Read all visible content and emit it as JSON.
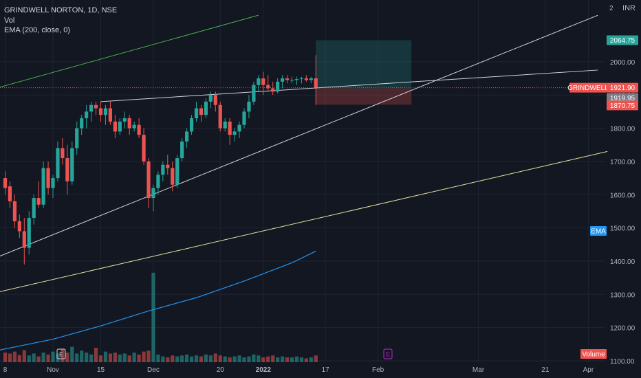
{
  "legend": {
    "symbol": "GRINDWELL NORTON, 1D, NSE",
    "vol": "Vol",
    "ema": "EMA (200, close, 0)"
  },
  "corner": {
    "currency": "INR"
  },
  "chart_data": {
    "type": "candlestick",
    "ylim": [
      1040,
      2140
    ],
    "y_ticks": [
      1100,
      1200,
      1300,
      1400,
      1500,
      1600,
      1700,
      1800,
      1900,
      2000
    ],
    "y_tick_labels": [
      "1100.00",
      "1200.00",
      "1300.00",
      "1400.00",
      "1500.00",
      "1600.00",
      "1700.00",
      "1800.00",
      "1900.00",
      "2000.00"
    ],
    "x_ticks": [
      {
        "label": "8",
        "bar": 0
      },
      {
        "label": "Nov",
        "bar": 10
      },
      {
        "label": "15",
        "bar": 20
      },
      {
        "label": "Dec",
        "bar": 31
      },
      {
        "label": "20",
        "bar": 45
      },
      {
        "label": "2022",
        "bar": 54
      },
      {
        "label": "17",
        "bar": 67
      },
      {
        "label": "Feb",
        "bar": 78
      },
      {
        "label": "Mar",
        "bar": 99
      },
      {
        "label": "21",
        "bar": 113
      },
      {
        "label": "Apr",
        "bar": 122
      }
    ],
    "candles": [
      [
        1650,
        1670,
        1600,
        1620
      ],
      [
        1625,
        1640,
        1560,
        1580
      ],
      [
        1580,
        1600,
        1500,
        1520
      ],
      [
        1520,
        1540,
        1470,
        1490
      ],
      [
        1490,
        1530,
        1390,
        1440
      ],
      [
        1440,
        1550,
        1420,
        1530
      ],
      [
        1530,
        1600,
        1510,
        1590
      ],
      [
        1590,
        1640,
        1560,
        1570
      ],
      [
        1570,
        1700,
        1560,
        1680
      ],
      [
        1680,
        1700,
        1600,
        1620
      ],
      [
        1620,
        1660,
        1590,
        1650
      ],
      [
        1650,
        1760,
        1640,
        1740
      ],
      [
        1740,
        1770,
        1690,
        1710
      ],
      [
        1710,
        1750,
        1600,
        1640
      ],
      [
        1640,
        1760,
        1630,
        1740
      ],
      [
        1740,
        1820,
        1720,
        1800
      ],
      [
        1800,
        1840,
        1780,
        1830
      ],
      [
        1830,
        1870,
        1800,
        1850
      ],
      [
        1850,
        1880,
        1820,
        1870
      ],
      [
        1870,
        1880,
        1840,
        1860
      ],
      [
        1860,
        1880,
        1820,
        1840
      ],
      [
        1840,
        1870,
        1810,
        1860
      ],
      [
        1860,
        1880,
        1810,
        1820
      ],
      [
        1820,
        1840,
        1770,
        1790
      ],
      [
        1790,
        1830,
        1780,
        1820
      ],
      [
        1820,
        1850,
        1800,
        1830
      ],
      [
        1830,
        1840,
        1780,
        1800
      ],
      [
        1800,
        1820,
        1790,
        1810
      ],
      [
        1810,
        1830,
        1770,
        1780
      ],
      [
        1780,
        1800,
        1690,
        1700
      ],
      [
        1700,
        1710,
        1560,
        1590
      ],
      [
        1590,
        1630,
        1550,
        1620
      ],
      [
        1620,
        1670,
        1600,
        1660
      ],
      [
        1660,
        1700,
        1640,
        1690
      ],
      [
        1690,
        1720,
        1660,
        1680
      ],
      [
        1680,
        1700,
        1610,
        1630
      ],
      [
        1630,
        1720,
        1620,
        1710
      ],
      [
        1710,
        1770,
        1700,
        1760
      ],
      [
        1760,
        1800,
        1740,
        1790
      ],
      [
        1790,
        1840,
        1780,
        1830
      ],
      [
        1830,
        1880,
        1820,
        1860
      ],
      [
        1860,
        1870,
        1820,
        1840
      ],
      [
        1840,
        1890,
        1830,
        1880
      ],
      [
        1880,
        1910,
        1860,
        1900
      ],
      [
        1900,
        1910,
        1850,
        1870
      ],
      [
        1870,
        1880,
        1790,
        1800
      ],
      [
        1800,
        1830,
        1790,
        1820
      ],
      [
        1820,
        1830,
        1750,
        1780
      ],
      [
        1780,
        1800,
        1760,
        1790
      ],
      [
        1790,
        1820,
        1770,
        1810
      ],
      [
        1810,
        1860,
        1800,
        1850
      ],
      [
        1850,
        1900,
        1830,
        1880
      ],
      [
        1880,
        1940,
        1870,
        1930
      ],
      [
        1930,
        1960,
        1910,
        1950
      ],
      [
        1950,
        1970,
        1900,
        1930
      ],
      [
        1930,
        1960,
        1910,
        1920
      ],
      [
        1920,
        1940,
        1900,
        1910
      ],
      [
        1910,
        1950,
        1905,
        1940
      ],
      [
        1940,
        1960,
        1920,
        1950
      ],
      [
        1950,
        1960,
        1935,
        1945
      ],
      [
        1945,
        1955,
        1935,
        1945
      ],
      [
        1945,
        1955,
        1930,
        1948
      ],
      [
        1948,
        1955,
        1935,
        1950
      ],
      [
        1950,
        1960,
        1940,
        1945
      ],
      [
        1945,
        1955,
        1935,
        1950
      ],
      [
        1950,
        2020,
        1870,
        1921.9
      ]
    ],
    "volume": [
      20,
      18,
      22,
      15,
      25,
      14,
      18,
      12,
      20,
      16,
      22,
      18,
      28,
      20,
      32,
      18,
      24,
      20,
      16,
      30,
      14,
      22,
      18,
      20,
      16,
      18,
      14,
      20,
      16,
      22,
      24,
      186,
      16,
      12,
      10,
      14,
      12,
      14,
      16,
      12,
      14,
      12,
      16,
      14,
      18,
      14,
      12,
      10,
      12,
      14,
      10,
      12,
      16,
      14,
      10,
      12,
      14,
      10,
      12,
      10,
      10,
      12,
      10,
      8,
      10,
      14
    ],
    "ema": [
      {
        "bar": -2,
        "value": 1130
      },
      {
        "bar": 10,
        "value": 1165
      },
      {
        "bar": 20,
        "value": 1205
      },
      {
        "bar": 30,
        "value": 1250
      },
      {
        "bar": 40,
        "value": 1290
      },
      {
        "bar": 50,
        "value": 1340
      },
      {
        "bar": 60,
        "value": 1395
      },
      {
        "bar": 65,
        "value": 1430
      }
    ],
    "trendlines": [
      {
        "color": "#4caf50",
        "points": [
          [
            -2,
            1920
          ],
          [
            53,
            2140
          ]
        ]
      },
      {
        "color": "#d1d4dc",
        "points": [
          [
            -2,
            1410
          ],
          [
            124,
            2140
          ]
        ]
      },
      {
        "color": "#d1d4dc",
        "points": [
          [
            20,
            1880
          ],
          [
            124,
            1975
          ]
        ]
      },
      {
        "color": "#e8e4a0",
        "points": [
          [
            -2,
            1305
          ],
          [
            126,
            1730
          ]
        ]
      }
    ],
    "position": {
      "entry_bar": 65,
      "end_bar": 85,
      "target": 2064.75,
      "entry": 1919.95,
      "stop": 1870.75
    },
    "labels": {
      "target": "2064.75",
      "symbol_tag": "GRINDWELL",
      "last_price": "1921.90",
      "entry": "1919.95",
      "stop": "1870.75",
      "ema_tag": "EMA",
      "volume_tag": "Volume",
      "top_tick": "2"
    },
    "colors": {
      "up": "#26a69a",
      "down": "#ef5350",
      "up_vol": "#26a69a",
      "down_vol": "#ef5350",
      "ema": "#2196f3",
      "target_zone": "#26a69a",
      "stop_zone": "#ef5350"
    }
  }
}
